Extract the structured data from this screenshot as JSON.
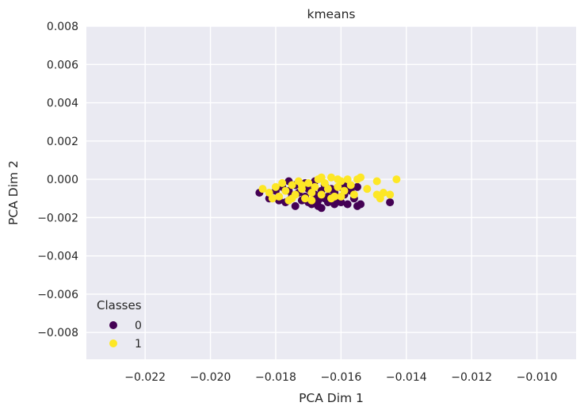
{
  "chart_data": {
    "type": "scatter",
    "title": "kmeans",
    "xlabel": "PCA Dim 1",
    "ylabel": "PCA Dim 2",
    "xlim": [
      -0.0238,
      -0.0088
    ],
    "ylim": [
      -0.0094,
      0.008
    ],
    "xticks": [
      -0.022,
      -0.02,
      -0.018,
      -0.016,
      -0.014,
      -0.012,
      -0.01
    ],
    "yticks": [
      -0.008,
      -0.006,
      -0.004,
      -0.002,
      0.0,
      0.002,
      0.004,
      0.006,
      0.008
    ],
    "xtick_labels": [
      "−0.022",
      "−0.020",
      "−0.018",
      "−0.016",
      "−0.014",
      "−0.012",
      "−0.010"
    ],
    "ytick_labels": [
      "−0.008",
      "−0.006",
      "−0.004",
      "−0.002",
      "0.000",
      "0.002",
      "0.004",
      "0.006",
      "0.008"
    ],
    "grid": true,
    "background": "#eaeaf2",
    "legend": {
      "title": "Classes",
      "placement": "lower-left"
    },
    "series": [
      {
        "name": "0",
        "color": "#440154",
        "points": [
          [
            -0.0185,
            -0.0007
          ],
          [
            -0.0182,
            -0.001
          ],
          [
            -0.018,
            -0.0006
          ],
          [
            -0.0179,
            -0.0011
          ],
          [
            -0.0178,
            -0.0004
          ],
          [
            -0.0177,
            -0.0012
          ],
          [
            -0.0176,
            -0.0006
          ],
          [
            -0.0175,
            -0.0009
          ],
          [
            -0.0174,
            -0.0014
          ],
          [
            -0.0174,
            -0.0003
          ],
          [
            -0.0173,
            -0.0007
          ],
          [
            -0.0172,
            -0.0011
          ],
          [
            -0.0171,
            -0.0002
          ],
          [
            -0.0171,
            -0.0009
          ],
          [
            -0.017,
            -0.0005
          ],
          [
            -0.0169,
            -0.0013
          ],
          [
            -0.0168,
            -0.0008
          ],
          [
            -0.0168,
            -0.0001
          ],
          [
            -0.0167,
            -0.0011
          ],
          [
            -0.0166,
            -0.0006
          ],
          [
            -0.0166,
            -0.0015
          ],
          [
            -0.0165,
            -0.0003
          ],
          [
            -0.0164,
            -0.0009
          ],
          [
            -0.0164,
            -0.0012
          ],
          [
            -0.0163,
            -0.0005
          ],
          [
            -0.0162,
            -0.0013
          ],
          [
            -0.0162,
            -0.0007
          ],
          [
            -0.0161,
            -0.001
          ],
          [
            -0.016,
            -0.0004
          ],
          [
            -0.016,
            -0.0012
          ],
          [
            -0.0159,
            -0.0008
          ],
          [
            -0.0158,
            -0.0013
          ],
          [
            -0.0157,
            -0.0006
          ],
          [
            -0.0156,
            -0.001
          ],
          [
            -0.0155,
            -0.0014
          ],
          [
            -0.0155,
            -0.0004
          ],
          [
            -0.0154,
            -0.0013
          ],
          [
            -0.0145,
            -0.0012
          ],
          [
            -0.0176,
            -0.0001
          ],
          [
            -0.017,
            -0.0012
          ],
          [
            -0.0165,
            -0.001
          ],
          [
            -0.0158,
            -0.0003
          ],
          [
            -0.0172,
            -0.0004
          ],
          [
            -0.0167,
            -0.0014
          ]
        ]
      },
      {
        "name": "1",
        "color": "#fde725",
        "points": [
          [
            -0.0184,
            -0.0005
          ],
          [
            -0.0182,
            -0.0007
          ],
          [
            -0.018,
            -0.0004
          ],
          [
            -0.0179,
            -0.0009
          ],
          [
            -0.0178,
            -0.0002
          ],
          [
            -0.0177,
            -0.0006
          ],
          [
            -0.0176,
            -0.0011
          ],
          [
            -0.0175,
            -0.0003
          ],
          [
            -0.0174,
            -0.0008
          ],
          [
            -0.0173,
            -0.0001
          ],
          [
            -0.0172,
            -0.0005
          ],
          [
            -0.0171,
            -0.001
          ],
          [
            -0.017,
            -0.0002
          ],
          [
            -0.0169,
            -0.0007
          ],
          [
            -0.0168,
            -0.0004
          ],
          [
            -0.0167,
            0.0
          ],
          [
            -0.0166,
            -0.0008
          ],
          [
            -0.0165,
            -0.0002
          ],
          [
            -0.0164,
            -0.0005
          ],
          [
            -0.0163,
            0.0001
          ],
          [
            -0.0162,
            -0.0009
          ],
          [
            -0.0161,
            -0.0004
          ],
          [
            -0.016,
            -0.0001
          ],
          [
            -0.0159,
            -0.0006
          ],
          [
            -0.0158,
            0.0
          ],
          [
            -0.0157,
            -0.0003
          ],
          [
            -0.0156,
            -0.0008
          ],
          [
            -0.0155,
            0.0
          ],
          [
            -0.0154,
            0.0001
          ],
          [
            -0.0152,
            -0.0005
          ],
          [
            -0.0149,
            -0.0001
          ],
          [
            -0.0149,
            -0.0008
          ],
          [
            -0.0148,
            -0.001
          ],
          [
            -0.0147,
            -0.0007
          ],
          [
            -0.0145,
            -0.0008
          ],
          [
            -0.0143,
            -0.0
          ],
          [
            -0.0181,
            -0.001
          ],
          [
            -0.0175,
            -0.001
          ],
          [
            -0.0169,
            -0.0011
          ],
          [
            -0.0163,
            -0.001
          ],
          [
            -0.0166,
            0.0001
          ],
          [
            -0.016,
            -0.0009
          ],
          [
            -0.0172,
            -0.0003
          ],
          [
            -0.0161,
            0.0
          ]
        ]
      }
    ]
  }
}
